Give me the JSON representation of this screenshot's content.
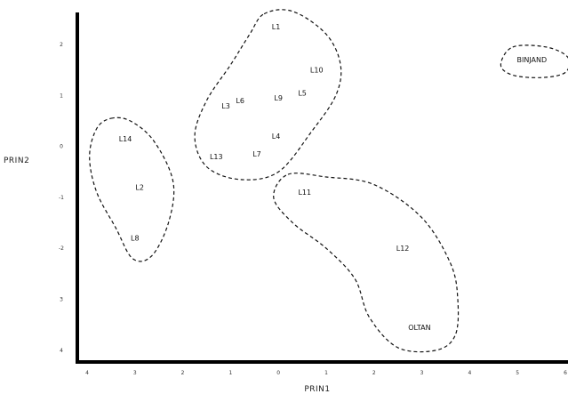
{
  "chart_data": {
    "type": "scatter",
    "xlabel": "PRIN1",
    "ylabel": "PRIN2",
    "xlim": [
      -4,
      6
    ],
    "ylim": [
      -4,
      2.5
    ],
    "x_ticks": [
      {
        "value": -4,
        "label": "4"
      },
      {
        "value": -3,
        "label": "3"
      },
      {
        "value": -2,
        "label": "2"
      },
      {
        "value": -1,
        "label": "1"
      },
      {
        "value": 0,
        "label": "0"
      },
      {
        "value": 1,
        "label": "1"
      },
      {
        "value": 2,
        "label": "2"
      },
      {
        "value": 3,
        "label": "3"
      },
      {
        "value": 4,
        "label": "4"
      },
      {
        "value": 5,
        "label": "5"
      },
      {
        "value": 6,
        "label": "6"
      }
    ],
    "y_ticks": [
      {
        "value": 2,
        "label": "2"
      },
      {
        "value": 1,
        "label": "1"
      },
      {
        "value": 0,
        "label": "0"
      },
      {
        "value": -1,
        "label": "-1"
      },
      {
        "value": -2,
        "label": "-2"
      },
      {
        "value": -3,
        "label": "3"
      },
      {
        "value": -4,
        "label": "4"
      }
    ],
    "points": [
      {
        "label": "L1",
        "x": -0.05,
        "y": 2.35
      },
      {
        "label": "L10",
        "x": 0.8,
        "y": 1.5
      },
      {
        "label": "L5",
        "x": 0.5,
        "y": 1.05
      },
      {
        "label": "L9",
        "x": 0.0,
        "y": 0.95
      },
      {
        "label": "L6",
        "x": -0.8,
        "y": 0.9
      },
      {
        "label": "L3",
        "x": -1.1,
        "y": 0.8
      },
      {
        "label": "L4",
        "x": -0.05,
        "y": 0.2
      },
      {
        "label": "L7",
        "x": -0.45,
        "y": -0.15
      },
      {
        "label": "L13",
        "x": -1.3,
        "y": -0.2
      },
      {
        "label": "L14",
        "x": -3.2,
        "y": 0.15
      },
      {
        "label": "L2",
        "x": -2.9,
        "y": -0.8
      },
      {
        "label": "L8",
        "x": -3.0,
        "y": -1.8
      },
      {
        "label": "L11",
        "x": 0.55,
        "y": -0.9
      },
      {
        "label": "L12",
        "x": 2.6,
        "y": -2.0
      },
      {
        "label": "OLTAN",
        "x": 2.95,
        "y": -3.55
      },
      {
        "label": "BINJAND",
        "x": 5.3,
        "y": 1.7
      }
    ],
    "clusters": [
      {
        "members": [
          "L1",
          "L10",
          "L5",
          "L9",
          "L6",
          "L3",
          "L4",
          "L7",
          "L13"
        ],
        "outline": [
          [
            -0.3,
            2.6
          ],
          [
            0.3,
            2.65
          ],
          [
            1.0,
            2.2
          ],
          [
            1.3,
            1.6
          ],
          [
            1.2,
            1.0
          ],
          [
            0.7,
            0.3
          ],
          [
            0.0,
            -0.5
          ],
          [
            -0.8,
            -0.65
          ],
          [
            -1.5,
            -0.4
          ],
          [
            -1.75,
            0.2
          ],
          [
            -1.5,
            0.9
          ],
          [
            -1.0,
            1.6
          ],
          [
            -0.6,
            2.2
          ]
        ]
      },
      {
        "members": [
          "L14",
          "L2",
          "L8"
        ],
        "outline": [
          [
            -3.5,
            0.55
          ],
          [
            -3.1,
            0.5
          ],
          [
            -2.6,
            0.1
          ],
          [
            -2.2,
            -0.7
          ],
          [
            -2.3,
            -1.5
          ],
          [
            -2.65,
            -2.15
          ],
          [
            -3.05,
            -2.2
          ],
          [
            -3.4,
            -1.6
          ],
          [
            -3.8,
            -0.9
          ],
          [
            -3.95,
            -0.2
          ],
          [
            -3.8,
            0.35
          ]
        ]
      },
      {
        "members": [
          "L11",
          "L12",
          "OLTAN"
        ],
        "outline": [
          [
            0.2,
            -0.55
          ],
          [
            1.0,
            -0.6
          ],
          [
            2.0,
            -0.75
          ],
          [
            3.0,
            -1.4
          ],
          [
            3.6,
            -2.3
          ],
          [
            3.75,
            -3.0
          ],
          [
            3.7,
            -3.7
          ],
          [
            3.3,
            -4.0
          ],
          [
            2.5,
            -3.95
          ],
          [
            1.9,
            -3.35
          ],
          [
            1.6,
            -2.6
          ],
          [
            1.0,
            -2.0
          ],
          [
            0.3,
            -1.5
          ],
          [
            -0.1,
            -1.0
          ]
        ]
      },
      {
        "members": [
          "BINJAND"
        ],
        "outline": [
          [
            4.9,
            1.95
          ],
          [
            5.6,
            1.95
          ],
          [
            6.05,
            1.75
          ],
          [
            6.0,
            1.45
          ],
          [
            5.5,
            1.35
          ],
          [
            4.9,
            1.4
          ],
          [
            4.65,
            1.6
          ]
        ]
      }
    ]
  }
}
